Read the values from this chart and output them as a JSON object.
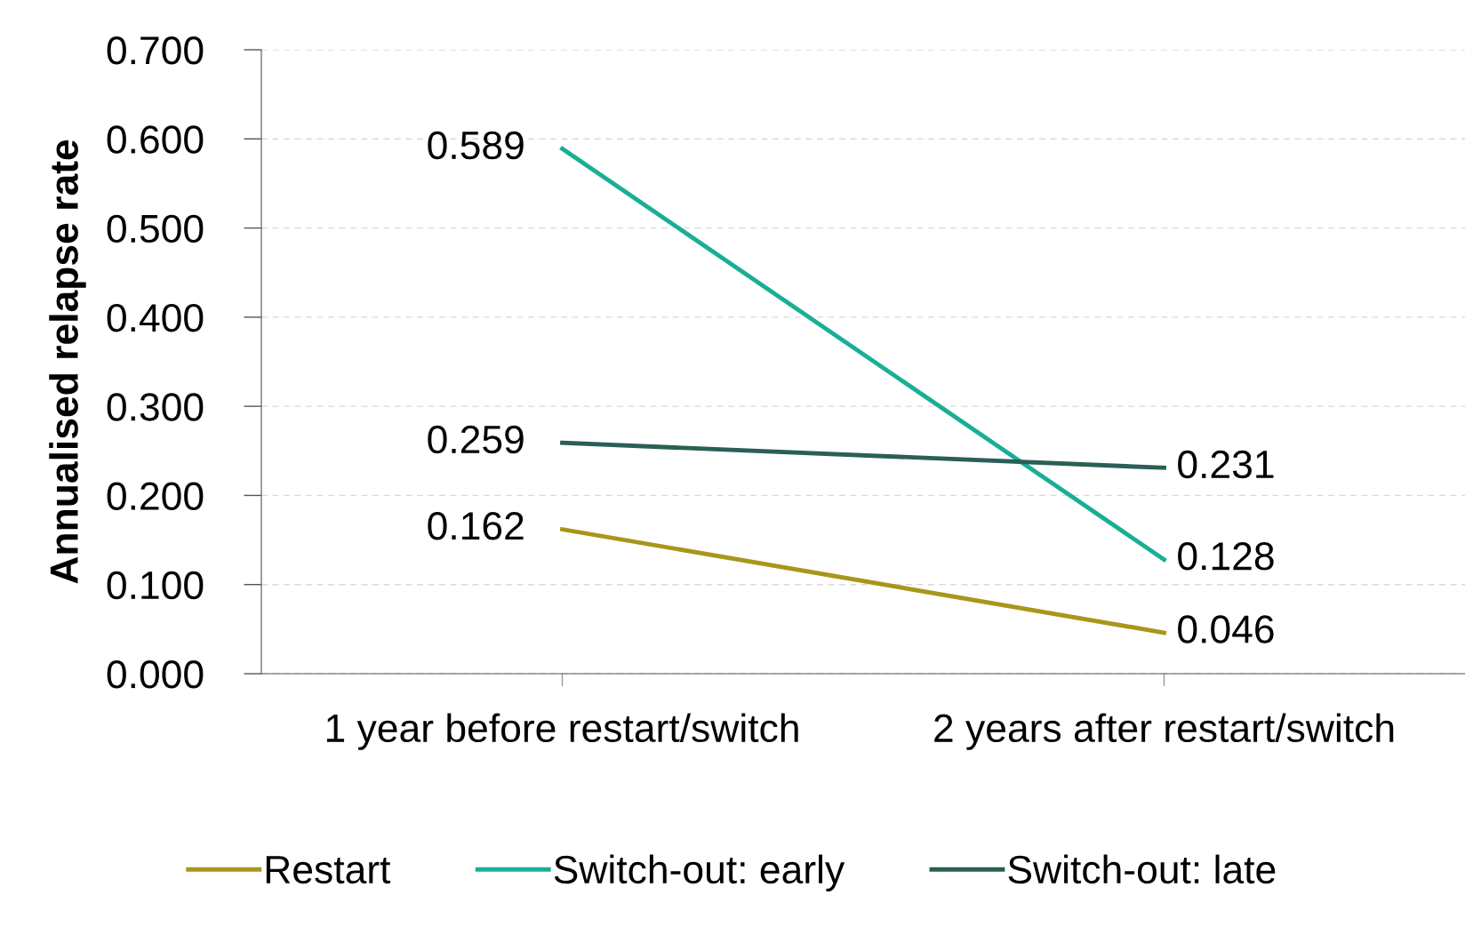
{
  "chart_data": {
    "type": "line",
    "ylabel": "Annualised relapse rate",
    "categories": [
      "1 year before restart/switch",
      "2 years after restart/switch"
    ],
    "series": [
      {
        "name": "Restart",
        "color": "#a8961a",
        "values": [
          0.162,
          0.046
        ]
      },
      {
        "name": "Switch-out: early",
        "color": "#1aae96",
        "values": [
          0.589,
          0.128
        ]
      },
      {
        "name": "Switch-out: late",
        "color": "#2a5f55",
        "values": [
          0.259,
          0.231
        ]
      }
    ],
    "ylim": [
      0,
      0.7
    ],
    "yticks": [
      {
        "value": 0,
        "label": "0.000"
      },
      {
        "value": 0.1,
        "label": "0.100"
      },
      {
        "value": 0.2,
        "label": "0.200"
      },
      {
        "value": 0.3,
        "label": "0.300"
      },
      {
        "value": 0.4,
        "label": "0.400"
      },
      {
        "value": 0.5,
        "label": "0.500"
      },
      {
        "value": 0.6,
        "label": "0.600"
      },
      {
        "value": 0.7,
        "label": "0.700"
      }
    ],
    "grid": "y",
    "legend": "bottom",
    "marker": "none",
    "line_style": "solid",
    "data_labels": true
  }
}
